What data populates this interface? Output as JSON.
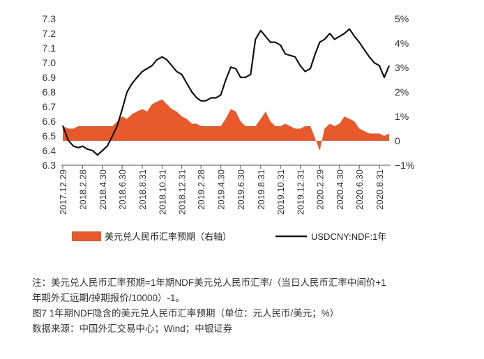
{
  "chart_data": {
    "type": "line",
    "left_axis": {
      "min": 6.3,
      "max": 7.3,
      "ticks": [
        "7.3",
        "7.2",
        "7.1",
        "7.0",
        "6.9",
        "6.8",
        "6.7",
        "6.6",
        "6.5",
        "6.4",
        "6.3"
      ]
    },
    "right_axis": {
      "min": -1,
      "max": 5,
      "ticks": [
        "5%",
        "4%",
        "3%",
        "2%",
        "1%",
        "0",
        "−1%"
      ]
    },
    "x_tick_labels": [
      "2017.12.29",
      "2018.2.28",
      "2018.4.30",
      "2018.6.30",
      "2018.8.31",
      "2018.10.31",
      "2018.12.31",
      "2019.2.28",
      "2019.4.30",
      "2019.6.30",
      "2019.8.31",
      "2019.10.31",
      "2019.12.31",
      "2020.2.29",
      "2020.4.30",
      "2020.6.30",
      "2020.8.31"
    ],
    "series": [
      {
        "name": "美元兑人民币汇率预期（右轴）",
        "kind": "area",
        "axis": "right",
        "color": "#e85a2c",
        "x": [
          "2017.12.29",
          "2018.1.15",
          "2018.1.31",
          "2018.2.15",
          "2018.2.28",
          "2018.3.15",
          "2018.3.31",
          "2018.4.15",
          "2018.4.30",
          "2018.5.15",
          "2018.5.31",
          "2018.6.15",
          "2018.6.30",
          "2018.7.15",
          "2018.7.31",
          "2018.8.15",
          "2018.8.31",
          "2018.9.15",
          "2018.9.30",
          "2018.10.15",
          "2018.10.31",
          "2018.11.15",
          "2018.11.30",
          "2018.12.15",
          "2018.12.31",
          "2019.1.15",
          "2019.1.31",
          "2019.2.15",
          "2019.2.28",
          "2019.3.15",
          "2019.3.31",
          "2019.4.15",
          "2019.4.30",
          "2019.5.15",
          "2019.5.31",
          "2019.6.15",
          "2019.6.30",
          "2019.7.15",
          "2019.7.31",
          "2019.8.15",
          "2019.8.31",
          "2019.9.15",
          "2019.9.30",
          "2019.10.15",
          "2019.10.31",
          "2019.11.15",
          "2019.11.30",
          "2019.12.15",
          "2019.12.31",
          "2020.1.15",
          "2020.1.31",
          "2020.2.15",
          "2020.2.29",
          "2020.3.15",
          "2020.3.31",
          "2020.4.15",
          "2020.4.30",
          "2020.5.15",
          "2020.5.31",
          "2020.6.15",
          "2020.6.30",
          "2020.7.15",
          "2020.7.31",
          "2020.8.15",
          "2020.8.31",
          "2020.9.15",
          "2020.9.30"
        ],
        "values": [
          0.6,
          0.5,
          0.5,
          0.6,
          0.6,
          0.6,
          0.6,
          0.6,
          0.6,
          0.6,
          0.6,
          0.8,
          1.0,
          0.9,
          1.1,
          1.2,
          1.3,
          1.2,
          1.5,
          1.6,
          1.7,
          1.5,
          1.3,
          1.2,
          1.0,
          0.9,
          0.7,
          0.7,
          0.6,
          0.6,
          0.6,
          0.6,
          0.6,
          0.9,
          1.3,
          1.2,
          0.8,
          0.6,
          0.6,
          0.6,
          0.9,
          1.2,
          0.8,
          0.6,
          0.6,
          0.7,
          0.6,
          0.5,
          0.5,
          0.6,
          0.6,
          0.1,
          -0.4,
          0.5,
          0.7,
          0.6,
          0.7,
          1.0,
          0.9,
          0.8,
          0.5,
          0.4,
          0.3,
          0.3,
          0.3,
          0.2,
          0.3
        ]
      },
      {
        "name": "USDCNY:NDF:1年",
        "kind": "line",
        "axis": "left",
        "color": "#111111",
        "x": [
          "2017.12.29",
          "2018.1.15",
          "2018.1.31",
          "2018.2.15",
          "2018.2.28",
          "2018.3.15",
          "2018.3.31",
          "2018.4.15",
          "2018.4.30",
          "2018.5.15",
          "2018.5.31",
          "2018.6.15",
          "2018.6.30",
          "2018.7.15",
          "2018.7.31",
          "2018.8.15",
          "2018.8.31",
          "2018.9.15",
          "2018.9.30",
          "2018.10.15",
          "2018.10.31",
          "2018.11.15",
          "2018.11.30",
          "2018.12.15",
          "2018.12.31",
          "2019.1.15",
          "2019.1.31",
          "2019.2.15",
          "2019.2.28",
          "2019.3.15",
          "2019.3.31",
          "2019.4.15",
          "2019.4.30",
          "2019.5.15",
          "2019.5.31",
          "2019.6.15",
          "2019.6.30",
          "2019.7.15",
          "2019.7.31",
          "2019.8.15",
          "2019.8.31",
          "2019.9.15",
          "2019.9.30",
          "2019.10.15",
          "2019.10.31",
          "2019.11.15",
          "2019.11.30",
          "2019.12.15",
          "2019.12.31",
          "2020.1.15",
          "2020.1.31",
          "2020.2.15",
          "2020.2.29",
          "2020.3.15",
          "2020.3.31",
          "2020.4.15",
          "2020.4.30",
          "2020.5.15",
          "2020.5.31",
          "2020.6.15",
          "2020.6.30",
          "2020.7.15",
          "2020.7.31",
          "2020.8.15",
          "2020.8.31",
          "2020.9.15",
          "2020.9.30"
        ],
        "values": [
          6.57,
          6.47,
          6.43,
          6.42,
          6.43,
          6.41,
          6.4,
          6.37,
          6.4,
          6.43,
          6.5,
          6.57,
          6.68,
          6.8,
          6.86,
          6.9,
          6.94,
          6.96,
          6.98,
          7.02,
          7.04,
          7.02,
          6.98,
          6.94,
          6.92,
          6.86,
          6.8,
          6.76,
          6.74,
          6.74,
          6.76,
          6.76,
          6.78,
          6.88,
          6.97,
          6.96,
          6.9,
          6.9,
          6.92,
          7.16,
          7.22,
          7.18,
          7.14,
          7.14,
          7.12,
          7.06,
          7.05,
          7.04,
          6.98,
          6.94,
          6.96,
          7.06,
          7.14,
          7.16,
          7.2,
          7.16,
          7.18,
          7.2,
          7.23,
          7.18,
          7.14,
          7.09,
          7.04,
          7.0,
          6.98,
          6.9,
          6.98
        ]
      }
    ],
    "grid": false,
    "legend": "bottom"
  },
  "colors": {
    "bar": "#e85a2c",
    "line": "#111111",
    "axis": "#555555"
  },
  "notes": {
    "line1": "注：美元兑人民币汇率预期=1年期NDF美元兑人民币汇率/（当日人民币汇率中间价+1",
    "line2": "年期外汇远期/掉期报价/10000）-1。",
    "figure_title": "图7  1年期NDF隐含的美元兑人民币汇率预期（单位：元人民币/美元；%）",
    "source": "数据来源：中国外汇交易中心；Wind；中银证券"
  }
}
